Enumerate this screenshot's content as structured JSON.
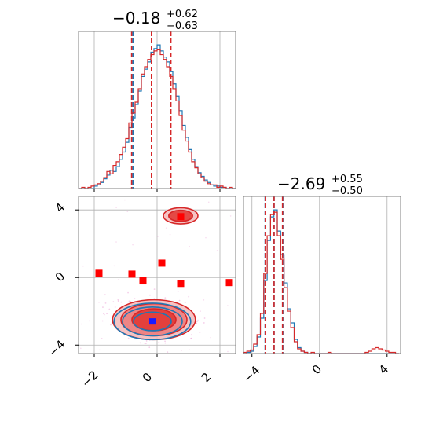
{
  "chart_data": [
    {
      "type": "histogram",
      "panel": "marginal-x",
      "title": {
        "median": "−0.18",
        "plus": "+0.62",
        "minus": "−0.63"
      },
      "xlim": [
        -2.5,
        2.5
      ],
      "grid": true,
      "series": [
        {
          "color": "#1f77b4",
          "bins": [
            -2.5,
            -2.4,
            -2.3,
            -2.2,
            -2.1,
            -2.0,
            -1.9,
            -1.8,
            -1.7,
            -1.6,
            -1.5,
            -1.4,
            -1.3,
            -1.2,
            -1.1,
            -1.0,
            -0.9,
            -0.8,
            -0.7,
            -0.6,
            -0.5,
            -0.4,
            -0.3,
            -0.2,
            -0.1,
            0.0,
            0.1,
            0.2,
            0.3,
            0.4,
            0.5,
            0.6,
            0.7,
            0.8,
            0.9,
            1.0,
            1.1,
            1.2,
            1.3,
            1.4,
            1.5,
            1.6,
            1.7,
            1.8,
            1.9,
            2.0,
            2.1,
            2.2,
            2.3,
            2.4
          ],
          "counts": [
            0,
            0,
            0,
            0,
            0,
            2,
            3,
            5,
            8,
            11,
            15,
            14,
            18,
            24,
            30,
            38,
            50,
            58,
            69,
            80,
            92,
            98,
            104,
            112,
            115,
            118,
            113,
            108,
            104,
            96,
            86,
            76,
            64,
            52,
            42,
            32,
            24,
            18,
            13,
            10,
            7,
            5,
            3,
            2,
            2,
            1,
            1,
            0,
            0,
            0
          ],
          "quantiles": [
            -0.77,
            -0.18,
            0.42
          ]
        },
        {
          "color": "#d62728",
          "bins": [
            -2.5,
            -2.4,
            -2.3,
            -2.2,
            -2.1,
            -2.0,
            -1.9,
            -1.8,
            -1.7,
            -1.6,
            -1.5,
            -1.4,
            -1.3,
            -1.2,
            -1.1,
            -1.0,
            -0.9,
            -0.8,
            -0.7,
            -0.6,
            -0.5,
            -0.4,
            -0.3,
            -0.2,
            -0.1,
            0.0,
            0.1,
            0.2,
            0.3,
            0.4,
            0.5,
            0.6,
            0.7,
            0.8,
            0.9,
            1.0,
            1.1,
            1.2,
            1.3,
            1.4,
            1.5,
            1.6,
            1.7,
            1.8,
            1.9,
            2.0,
            2.1,
            2.2,
            2.3,
            2.4
          ],
          "counts": [
            0,
            1,
            0,
            1,
            2,
            3,
            4,
            6,
            9,
            14,
            12,
            19,
            22,
            28,
            34,
            41,
            54,
            62,
            71,
            82,
            94,
            100,
            106,
            110,
            113,
            114,
            110,
            106,
            100,
            92,
            82,
            72,
            60,
            48,
            39,
            30,
            22,
            17,
            12,
            9,
            6,
            4,
            3,
            3,
            1,
            2,
            1,
            0,
            1,
            0
          ],
          "quantiles": [
            -0.81,
            -0.18,
            0.44
          ]
        }
      ]
    },
    {
      "type": "histogram",
      "panel": "marginal-y",
      "title": {
        "median": "−2.69",
        "plus": "+0.55",
        "minus": "−0.50"
      },
      "xlim": [
        -4.5,
        4.8
      ],
      "grid": true,
      "series": [
        {
          "color": "#1f77b4",
          "bins": [
            -4.5,
            -4.3,
            -4.1,
            -3.9,
            -3.7,
            -3.5,
            -3.3,
            -3.1,
            -2.9,
            -2.7,
            -2.5,
            -2.3,
            -2.1,
            -1.9,
            -1.7,
            -1.5,
            -1.3,
            -1.1,
            -0.9,
            -0.7,
            -0.5,
            -0.3,
            -0.1,
            0.1,
            0.3,
            0.5,
            0.7,
            0.9,
            1.1,
            1.3,
            1.5,
            1.7,
            1.9,
            2.1,
            2.3,
            2.5,
            2.7,
            2.9,
            3.1,
            3.3,
            3.5,
            3.7,
            3.9,
            4.1,
            4.3,
            4.5
          ],
          "counts": [
            0,
            1,
            2,
            6,
            14,
            30,
            62,
            96,
            116,
            122,
            104,
            84,
            60,
            38,
            26,
            12,
            5,
            2,
            1,
            0,
            0,
            0,
            0,
            0,
            0,
            0,
            0,
            0,
            0,
            0,
            0,
            0,
            0,
            0,
            0,
            0,
            0,
            0,
            0,
            0,
            0,
            0,
            0,
            0,
            0,
            0
          ],
          "quantiles": [
            -3.22,
            -2.69,
            -2.17
          ]
        },
        {
          "color": "#d62728",
          "bins": [
            -4.5,
            -4.3,
            -4.1,
            -3.9,
            -3.7,
            -3.5,
            -3.3,
            -3.1,
            -2.9,
            -2.7,
            -2.5,
            -2.3,
            -2.1,
            -1.9,
            -1.7,
            -1.5,
            -1.3,
            -1.1,
            -0.9,
            -0.7,
            -0.5,
            -0.3,
            -0.1,
            0.1,
            0.3,
            0.5,
            0.7,
            0.9,
            1.1,
            1.3,
            1.5,
            1.7,
            1.9,
            2.1,
            2.3,
            2.5,
            2.7,
            2.9,
            3.1,
            3.3,
            3.5,
            3.7,
            3.9,
            4.1,
            4.3,
            4.5
          ],
          "counts": [
            1,
            2,
            3,
            8,
            16,
            34,
            68,
            100,
            118,
            120,
            100,
            80,
            56,
            36,
            22,
            10,
            4,
            2,
            1,
            0,
            1,
            0,
            0,
            0,
            0,
            1,
            0,
            0,
            0,
            0,
            0,
            0,
            0,
            0,
            0,
            0,
            1,
            2,
            4,
            5,
            4,
            3,
            2,
            1,
            1,
            0
          ],
          "quantiles": [
            -3.19,
            -2.69,
            -2.19
          ]
        }
      ]
    },
    {
      "type": "contour",
      "panel": "joint",
      "xlim": [
        -2.5,
        2.5
      ],
      "ylim": [
        -4.5,
        4.8
      ],
      "grid": true,
      "contours": [
        {
          "color": "#d62728",
          "center": [
            -0.1,
            -2.5
          ],
          "radii_levels": [
            [
              0.7,
              0.65
            ],
            [
              1.05,
              0.95
            ],
            [
              1.32,
              1.18
            ]
          ]
        },
        {
          "color": "#1f77b4",
          "center": [
            -0.15,
            -2.6
          ],
          "radii_levels": [
            [
              0.6,
              0.55
            ],
            [
              0.95,
              0.85
            ],
            [
              1.22,
              1.08
            ]
          ]
        },
        {
          "color": "#d62728",
          "center": [
            0.75,
            3.65
          ],
          "radii_levels": [
            [
              0.38,
              0.33
            ],
            [
              0.55,
              0.48
            ]
          ]
        }
      ],
      "markers_red": [
        [
          -1.85,
          0.25
        ],
        [
          -0.8,
          0.2
        ],
        [
          -0.45,
          -0.2
        ],
        [
          0.15,
          0.85
        ],
        [
          0.75,
          -0.35
        ],
        [
          2.3,
          -0.3
        ],
        [
          0.75,
          3.6
        ]
      ],
      "marker_blue": [
        -0.15,
        -2.6
      ]
    }
  ],
  "axes": {
    "x_ticks": [
      "−2",
      "0",
      "2"
    ],
    "y_ticks": [
      "4",
      "0",
      "−4"
    ],
    "x_ticks_right": [
      "−4",
      "0",
      "4"
    ]
  },
  "colors": {
    "blue": "#1f77b4",
    "red": "#d62728",
    "grid": "#b0b0b0",
    "frame": "#808080"
  }
}
